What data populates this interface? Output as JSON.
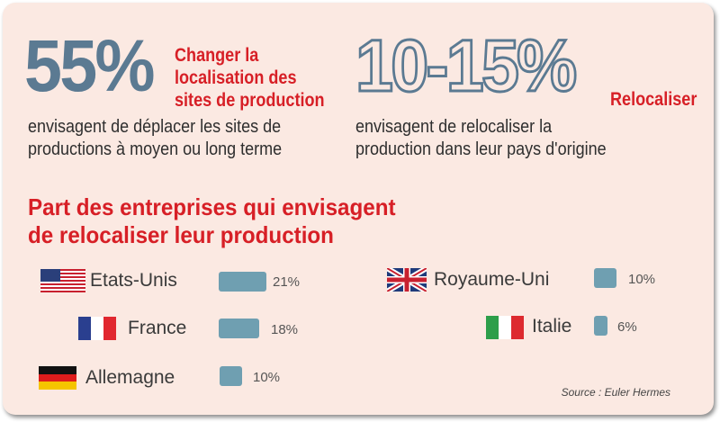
{
  "stats": [
    {
      "value": "55%",
      "heading": [
        "Changer la",
        "localisation des",
        "sites de production"
      ],
      "description": [
        "envisagent de déplacer les sites de",
        "productions à moyen ou long terme"
      ]
    },
    {
      "value": "10-15%",
      "heading": [
        "Relocaliser"
      ],
      "description": [
        "envisagent de relocaliser la",
        "production dans leur pays d'origine"
      ]
    }
  ],
  "chart_data": {
    "type": "bar",
    "title": "Part des entreprises qui envisagent de relocaliser leur production",
    "title_lines": [
      "Part des entreprises qui envisagent",
      "de relocaliser leur production"
    ],
    "categories": [
      "Etats-Unis",
      "France",
      "Allemagne",
      "Royaume-Uni",
      "Italie"
    ],
    "values": [
      21,
      18,
      10,
      10,
      6
    ],
    "value_labels": [
      "21%",
      "18%",
      "10%",
      "10%",
      "6%"
    ],
    "unit": "%",
    "bar_color": "#6f9fb1",
    "flags": [
      "us-flag-icon",
      "france-flag-icon",
      "germany-flag-icon",
      "uk-flag-icon",
      "italy-flag-icon"
    ]
  },
  "source": "Source : Euler Hermes",
  "colors": {
    "accent": "#d71f26",
    "number": "#5b7a92",
    "background": "#fbe9e2",
    "bar": "#6f9fb1"
  }
}
